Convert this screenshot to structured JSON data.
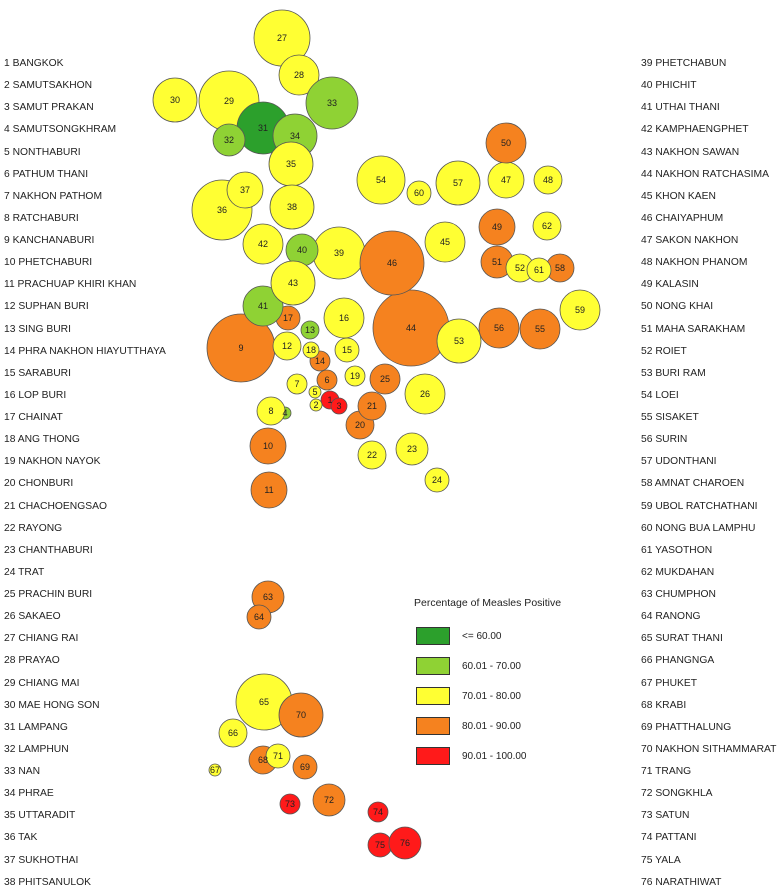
{
  "provinces_left": [
    "1 BANGKOK",
    "2 SAMUTSAKHON",
    "3 SAMUT PRAKAN",
    "4 SAMUTSONGKHRAM",
    "5 NONTHABURI",
    "6 PATHUM THANI",
    "7 NAKHON PATHOM",
    "8 RATCHABURI",
    "9 KANCHANABURI",
    "10 PHETCHABURI",
    "11 PRACHUAP KHIRI KHAN",
    "12 SUPHAN BURI",
    "13 SING BURI",
    "14 PHRA NAKHON HIAYUTTHAYA",
    "15 SARABURI",
    "16 LOP BURI",
    "17 CHAINAT",
    "18 ANG THONG",
    "19 NAKHON NAYOK",
    "20 CHONBURI",
    "21 CHACHOENGSAO",
    "22 RAYONG",
    "23 CHANTHABURI",
    "24 TRAT",
    "25 PRACHIN BURI",
    "26 SAKAEO",
    "27 CHIANG RAI",
    "28 PRAYAO",
    "29 CHIANG MAI",
    "30 MAE HONG SON",
    "31 LAMPANG",
    "32 LAMPHUN",
    "33 NAN",
    "34 PHRAE",
    "35 UTTARADIT",
    "36 TAK",
    "37 SUKHOTHAI",
    "38 PHITSANULOK"
  ],
  "provinces_right": [
    "39 PHETCHABUN",
    "40 PHICHIT",
    "41 UTHAI THANI",
    "42 KAMPHAENGPHET",
    "43 NAKHON SAWAN",
    "44 NAKHON RATCHASIMA",
    "45 KHON KAEN",
    "46 CHAIYAPHUM",
    "47 SAKON NAKHON",
    "48 NAKHON PHANOM",
    "49 KALASIN",
    "50 NONG KHAI",
    "51 MAHA SARAKHAM",
    "52 ROIET",
    "53 BURI RAM",
    "54 LOEI",
    "55 SISAKET",
    "56 SURIN",
    "57 UDONTHANI",
    "58 AMNAT CHAROEN",
    "59 UBOL RATCHATHANI",
    "60 NONG BUA LAMPHU",
    "61 YASOTHON",
    "62 MUKDAHAN",
    "63 CHUMPHON",
    "64 RANONG",
    "65 SURAT THANI",
    "66 PHANGNGA",
    "67 PHUKET",
    "68 KRABI",
    "69 PHATTHALUNG",
    "70 NAKHON SITHAMMARAT",
    "71 TRANG",
    "72 SONGKHLA",
    "73 SATUN",
    "74 PATTANI",
    "75 YALA",
    "76 NARATHIWAT"
  ],
  "legend": {
    "title": "Percentage of Measles Positive",
    "classes": [
      {
        "label": "<= 60.00",
        "color": "#2ca02c"
      },
      {
        "label": "60.01 - 70.00",
        "color": "#8fd234"
      },
      {
        "label": "70.01 - 80.00",
        "color": "#ffff33"
      },
      {
        "label": "80.01 - 90.00",
        "color": "#f5821f"
      },
      {
        "label": "90.01 - 100.00",
        "color": "#ff1a1a"
      }
    ]
  },
  "map_labels": [
    "1",
    "2",
    "3",
    "4",
    "5",
    "6",
    "7",
    "8",
    "9",
    "10",
    "11",
    "12",
    "13",
    "14",
    "15",
    "16",
    "17",
    "18",
    "19",
    "20",
    "21",
    "22",
    "23",
    "24",
    "25",
    "26",
    "27",
    "28",
    "29",
    "30",
    "31",
    "32",
    "33",
    "34",
    "35",
    "36",
    "37",
    "38",
    "39",
    "40",
    "41",
    "42",
    "43",
    "44",
    "45",
    "46",
    "47",
    "48",
    "49",
    "50",
    "51",
    "52",
    "53",
    "54",
    "55",
    "56",
    "57",
    "58",
    "59",
    "60",
    "61",
    "62",
    "63",
    "64",
    "65",
    "66",
    "67",
    "68",
    "69",
    "70",
    "71",
    "72",
    "73",
    "74",
    "75",
    "76"
  ],
  "province_class": {
    "1": "90.01 - 100.00",
    "2": "70.01 - 80.00",
    "3": "90.01 - 100.00",
    "4": "60.01 - 70.00",
    "5": "70.01 - 80.00",
    "6": "80.01 - 90.00",
    "7": "70.01 - 80.00",
    "8": "70.01 - 80.00",
    "9": "80.01 - 90.00",
    "10": "80.01 - 90.00",
    "11": "80.01 - 90.00",
    "12": "70.01 - 80.00",
    "13": "60.01 - 70.00",
    "14": "80.01 - 90.00",
    "15": "70.01 - 80.00",
    "16": "70.01 - 80.00",
    "17": "80.01 - 90.00",
    "18": "70.01 - 80.00",
    "19": "70.01 - 80.00",
    "20": "80.01 - 90.00",
    "21": "80.01 - 90.00",
    "22": "70.01 - 80.00",
    "23": "70.01 - 80.00",
    "24": "70.01 - 80.00",
    "25": "80.01 - 90.00",
    "26": "70.01 - 80.00",
    "27": "70.01 - 80.00",
    "28": "70.01 - 80.00",
    "29": "70.01 - 80.00",
    "30": "70.01 - 80.00",
    "31": "<= 60.00",
    "32": "60.01 - 70.00",
    "33": "60.01 - 70.00",
    "34": "60.01 - 70.00",
    "35": "70.01 - 80.00",
    "36": "70.01 - 80.00",
    "37": "70.01 - 80.00",
    "38": "70.01 - 80.00",
    "39": "70.01 - 80.00",
    "40": "60.01 - 70.00",
    "41": "60.01 - 70.00",
    "42": "70.01 - 80.00",
    "43": "70.01 - 80.00",
    "44": "80.01 - 90.00",
    "45": "70.01 - 80.00",
    "46": "80.01 - 90.00",
    "47": "70.01 - 80.00",
    "48": "70.01 - 80.00",
    "49": "80.01 - 90.00",
    "50": "80.01 - 90.00",
    "51": "80.01 - 90.00",
    "52": "70.01 - 80.00",
    "53": "70.01 - 80.00",
    "54": "70.01 - 80.00",
    "55": "80.01 - 90.00",
    "56": "80.01 - 90.00",
    "57": "70.01 - 80.00",
    "58": "80.01 - 90.00",
    "59": "70.01 - 80.00",
    "60": "70.01 - 80.00",
    "61": "70.01 - 80.00",
    "62": "70.01 - 80.00",
    "63": "80.01 - 90.00",
    "64": "80.01 - 90.00",
    "65": "70.01 - 80.00",
    "66": "70.01 - 80.00",
    "67": "70.01 - 80.00",
    "68": "80.01 - 90.00",
    "69": "80.01 - 90.00",
    "70": "80.01 - 90.00",
    "71": "70.01 - 80.00",
    "72": "80.01 - 90.00",
    "73": "90.01 - 100.00",
    "74": "90.01 - 100.00",
    "75": "90.01 - 100.00",
    "76": "90.01 - 100.00"
  }
}
